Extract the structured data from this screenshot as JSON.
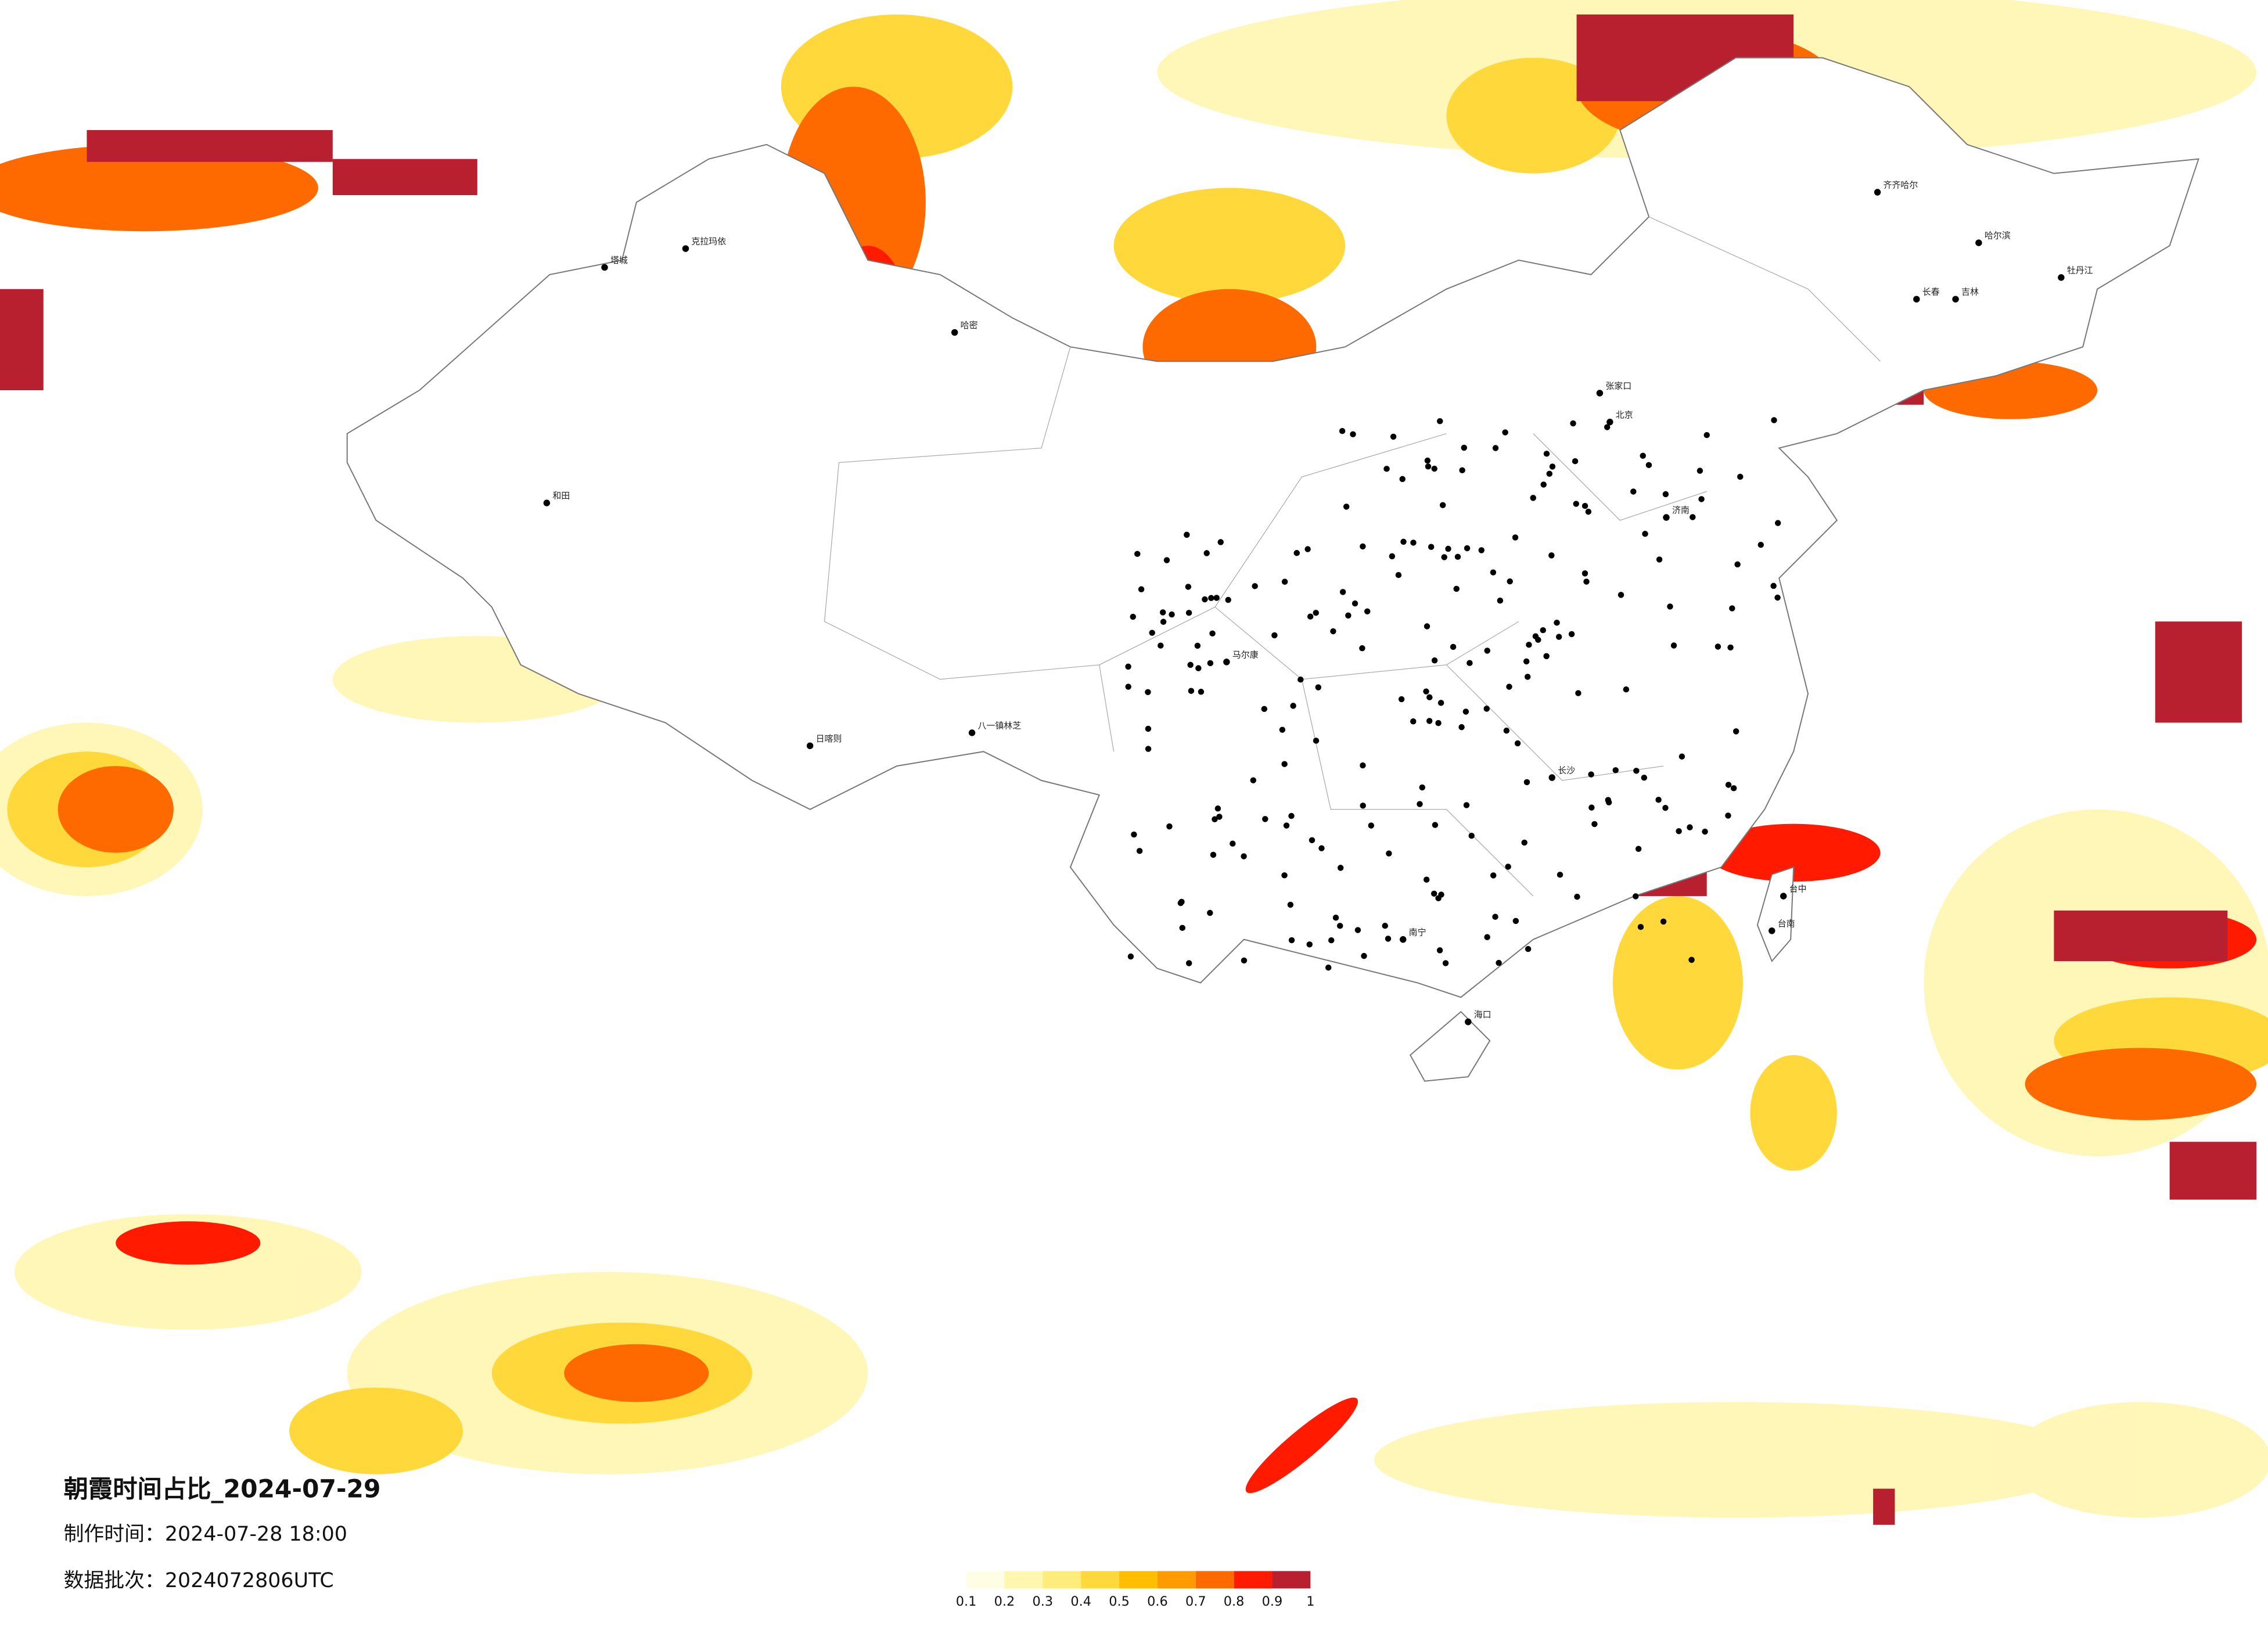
{
  "header": {
    "title": "朝霞时间占比_2024-07-29",
    "made_time": "制作时间：2024-07-28 18:00",
    "batch": "数据批次：2024072806UTC"
  },
  "legend": {
    "colors": [
      "#fffde3",
      "#fff6b0",
      "#ffec7a",
      "#ffd93b",
      "#ffbf00",
      "#ff9a00",
      "#ff6a00",
      "#ff1a00",
      "#b8202f"
    ],
    "ticks": [
      0.1,
      0.2,
      0.3,
      0.4,
      0.5,
      0.6,
      0.7,
      0.8,
      0.9,
      1
    ]
  },
  "cities": [
    "北京",
    "张家口",
    "济南",
    "长沙",
    "南宁",
    "海口",
    "台中",
    "台南",
    "哈尔滨",
    "长春",
    "吉林",
    "马尔康",
    "和田",
    "哈密",
    "日喀则",
    "八一镇林芝",
    "塔城",
    "克拉玛依",
    "齐齐哈尔",
    "牡丹江"
  ]
}
